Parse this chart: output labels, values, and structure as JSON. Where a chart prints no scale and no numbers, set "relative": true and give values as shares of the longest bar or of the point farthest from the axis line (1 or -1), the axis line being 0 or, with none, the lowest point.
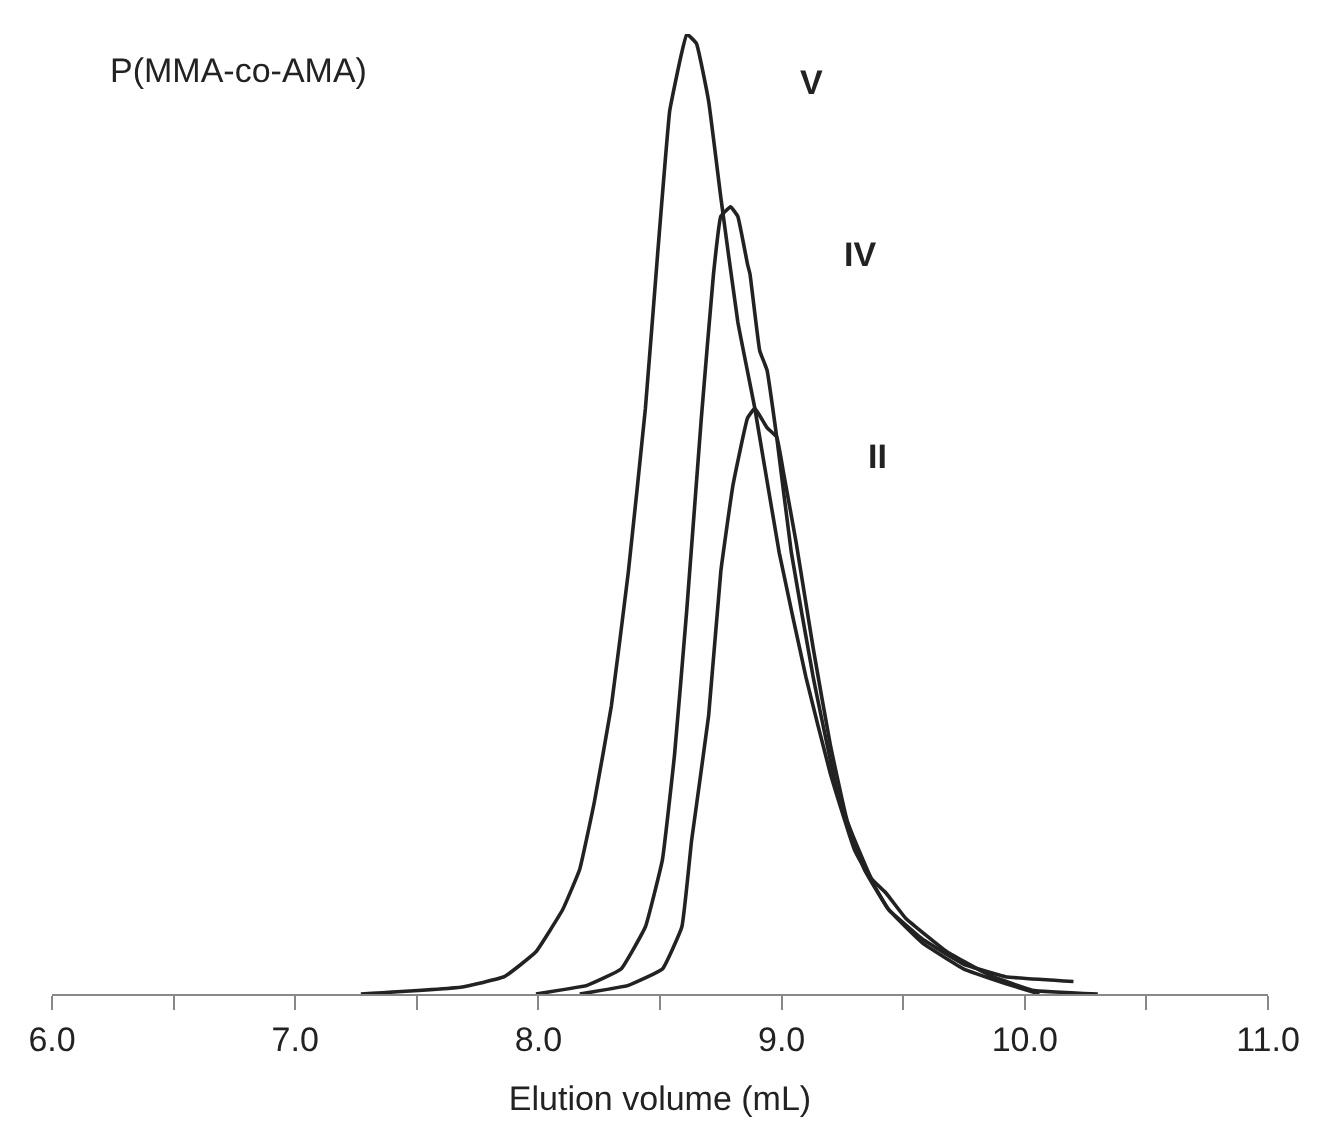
{
  "chart_data": {
    "type": "line",
    "relative": true,
    "xlabel": "Elution volume (mL)",
    "annotations": [
      "P(MMA-co-AMA)"
    ],
    "xlim": [
      6,
      11
    ],
    "xticks": [
      {
        "value": 6,
        "label": "6.0"
      },
      {
        "value": 6.5,
        "label": null
      },
      {
        "value": 7,
        "label": "7.0"
      },
      {
        "value": 7.5,
        "label": null
      },
      {
        "value": 8,
        "label": "8.0"
      },
      {
        "value": 8.5,
        "label": null
      },
      {
        "value": 9,
        "label": "9.0"
      },
      {
        "value": 9.5,
        "label": null
      },
      {
        "value": 10,
        "label": "10.0"
      },
      {
        "value": 10.5,
        "label": null
      },
      {
        "value": 11,
        "label": "11.0"
      }
    ],
    "grid": false,
    "legend": false,
    "marker": "none",
    "line_style": "solid",
    "series": [
      {
        "name": "V",
        "color": "#222222",
        "x": [
          7.27,
          7.68,
          7.86,
          7.99,
          8.1,
          8.17,
          8.23,
          8.3,
          8.37,
          8.44,
          8.49,
          8.54,
          8.58,
          8.61,
          8.65,
          8.7,
          8.75,
          8.82,
          8.89,
          8.99,
          9.1,
          9.2,
          9.3,
          9.44,
          9.58,
          9.75,
          9.92,
          10.06
        ],
        "values": [
          0,
          0.007,
          0.018,
          0.044,
          0.088,
          0.13,
          0.2,
          0.3,
          0.44,
          0.61,
          0.77,
          0.92,
          0.97,
          1,
          0.99,
          0.93,
          0.83,
          0.7,
          0.61,
          0.46,
          0.33,
          0.23,
          0.15,
          0.088,
          0.053,
          0.026,
          0.011,
          0
        ]
      },
      {
        "name": "IV",
        "color": "#222222",
        "x": [
          7.99,
          8.2,
          8.34,
          8.44,
          8.51,
          8.56,
          8.61,
          8.67,
          8.72,
          8.75,
          8.79,
          8.82,
          8.86,
          8.87,
          8.91,
          8.94,
          8.98,
          9.04,
          9.13,
          9.23,
          9.34,
          9.44,
          9.58,
          9.75,
          9.92,
          10.2
        ],
        "values": [
          0,
          0.009,
          0.026,
          0.07,
          0.14,
          0.25,
          0.4,
          0.6,
          0.75,
          0.81,
          0.82,
          0.81,
          0.76,
          0.75,
          0.67,
          0.65,
          0.58,
          0.46,
          0.33,
          0.21,
          0.13,
          0.088,
          0.057,
          0.031,
          0.018,
          0.013
        ]
      },
      {
        "name": "II",
        "color": "#222222",
        "x": [
          8.17,
          8.37,
          8.51,
          8.59,
          8.63,
          8.7,
          8.75,
          8.8,
          8.86,
          8.89,
          8.94,
          8.98,
          9.01,
          9.06,
          9.13,
          9.2,
          9.27,
          9.37,
          9.43,
          9.51,
          9.68,
          9.86,
          10.03,
          10.3
        ],
        "values": [
          0,
          0.009,
          0.026,
          0.07,
          0.16,
          0.29,
          0.44,
          0.53,
          0.6,
          0.61,
          0.59,
          0.58,
          0.54,
          0.47,
          0.36,
          0.26,
          0.18,
          0.12,
          0.105,
          0.079,
          0.044,
          0.019,
          0.004,
          0
        ]
      }
    ]
  }
}
